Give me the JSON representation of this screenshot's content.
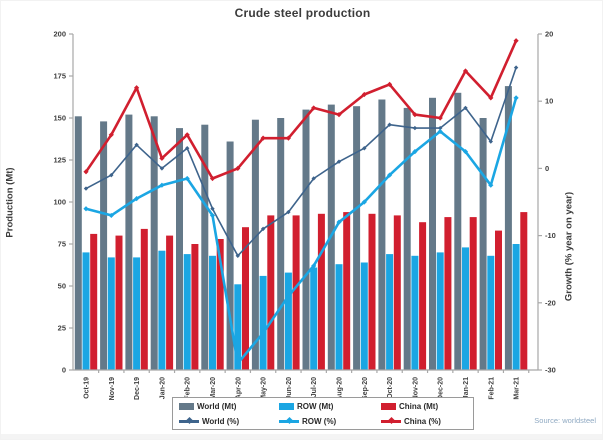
{
  "title": "Crude steel production",
  "source": "Source: worldsteel",
  "legend": {
    "items": [
      {
        "label": "World (Mt)",
        "kind": "bar",
        "color": "#647989"
      },
      {
        "label": "ROW (Mt)",
        "kind": "bar",
        "color": "#1ba6e3"
      },
      {
        "label": "China (Mt)",
        "kind": "bar",
        "color": "#d11f2f"
      },
      {
        "label": "World (%)",
        "kind": "line",
        "color": "#3e648c"
      },
      {
        "label": "ROW (%)",
        "kind": "line",
        "color": "#1ba6e3"
      },
      {
        "label": "China (%)",
        "kind": "line",
        "color": "#d11f2f"
      }
    ]
  },
  "chart_data": {
    "type": "bar+line",
    "title": "Crude steel production",
    "categories": [
      "Oct-19",
      "Nov-19",
      "Dec-19",
      "Jan-20",
      "Feb-20",
      "Mar-20",
      "Apr-20",
      "May-20",
      "Jun-20",
      "Jul-20",
      "Aug-20",
      "Sep-20",
      "Oct-20",
      "Nov-20",
      "Dec-20",
      "Jan-21",
      "Feb-21",
      "Mar-21"
    ],
    "bar_series": [
      {
        "name": "World (Mt)",
        "color": "#647989",
        "values": [
          151,
          148,
          152,
          151,
          144,
          146,
          136,
          149,
          150,
          155,
          158,
          157,
          161,
          156,
          162,
          165,
          150,
          169
        ]
      },
      {
        "name": "ROW (Mt)",
        "color": "#1ba6e3",
        "values": [
          70,
          67,
          67,
          71,
          69,
          68,
          51,
          56,
          58,
          61,
          63,
          64,
          69,
          68,
          70,
          73,
          68,
          75
        ]
      },
      {
        "name": "China (Mt)",
        "color": "#d11f2f",
        "values": [
          81,
          80,
          84,
          80,
          75,
          78,
          85,
          92,
          92,
          93,
          94,
          93,
          92,
          88,
          91,
          91,
          83,
          94
        ]
      }
    ],
    "line_series": [
      {
        "name": "World (%)",
        "color": "#3e648c",
        "stroke_width": 1.6,
        "marker": 2.2,
        "values": [
          -3,
          -1,
          3.5,
          0,
          3,
          -6,
          -13,
          -9,
          -6.5,
          -1.5,
          1,
          3,
          6.5,
          6,
          6,
          9,
          4,
          15
        ]
      },
      {
        "name": "ROW (%)",
        "color": "#1ba6e3",
        "stroke_width": 2.6,
        "marker": 2.6,
        "values": [
          -6,
          -7,
          -4.5,
          -2.5,
          -1.5,
          -7,
          -29,
          -24.5,
          -19,
          -14.5,
          -8,
          -5,
          -1,
          2.5,
          5.5,
          2.5,
          -2.5,
          10.5
        ]
      },
      {
        "name": "China (%)",
        "color": "#d11f2f",
        "stroke_width": 2.6,
        "marker": 2.6,
        "values": [
          -0.5,
          5,
          12,
          1.5,
          5,
          -1.5,
          0,
          4.5,
          4.5,
          9,
          8,
          11,
          12.5,
          8,
          7.5,
          14.5,
          10.5,
          19
        ]
      }
    ],
    "left_axis": {
      "label": "Production (Mt)",
      "min": 0,
      "max": 200,
      "ticks": [
        0,
        25,
        50,
        75,
        100,
        125,
        150,
        175,
        200
      ]
    },
    "right_axis": {
      "label": "Growth (% year on year)",
      "min": -30,
      "max": 20,
      "ticks": [
        20,
        10,
        0,
        -10,
        -20,
        -30
      ]
    },
    "grid": false,
    "legend_position": "bottom"
  }
}
